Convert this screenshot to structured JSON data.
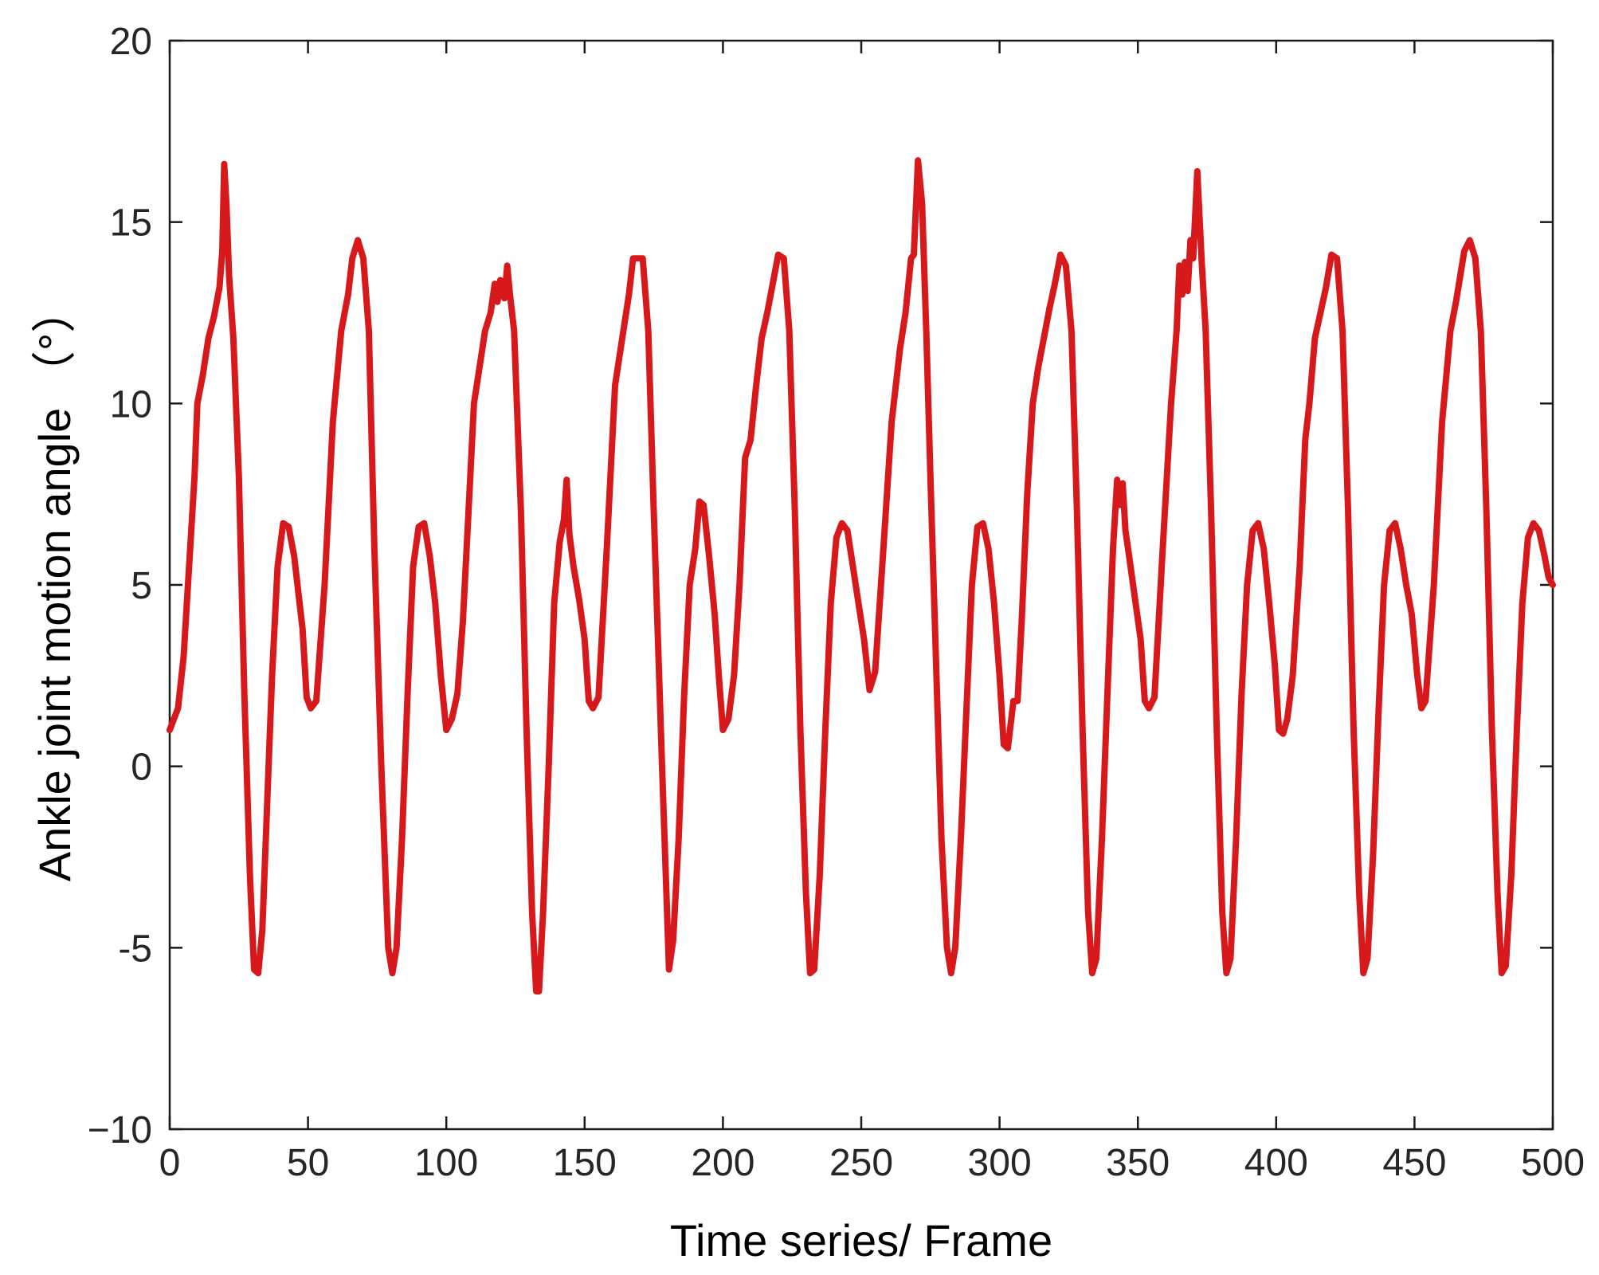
{
  "chart_data": {
    "type": "line",
    "title": "",
    "xlabel": "Time series/ Frame",
    "ylabel": "Ankle joint motion angle （°）",
    "xlim": [
      0,
      500
    ],
    "ylim": [
      -10,
      20
    ],
    "x_ticks": [
      0,
      50,
      100,
      150,
      200,
      250,
      300,
      350,
      400,
      450,
      500
    ],
    "y_ticks": [
      -10,
      -5,
      0,
      5,
      10,
      15,
      20
    ],
    "x_tick_labels": [
      "0",
      "50",
      "100",
      "150",
      "200",
      "250",
      "300",
      "350",
      "400",
      "450",
      "500"
    ],
    "y_tick_labels": [
      "−10",
      "-5",
      "0",
      "5",
      "10",
      "15",
      "20"
    ],
    "grid": false,
    "legend": "none",
    "series": [
      {
        "color": "#d7191c",
        "points": [
          [
            0,
            1.0
          ],
          [
            3,
            1.6
          ],
          [
            5,
            3.0
          ],
          [
            7,
            5.5
          ],
          [
            9,
            8.0
          ],
          [
            10,
            10.0
          ],
          [
            12,
            10.8
          ],
          [
            14,
            11.8
          ],
          [
            16,
            12.4
          ],
          [
            18,
            13.2
          ],
          [
            19,
            14.2
          ],
          [
            19.7,
            16.6
          ],
          [
            20.5,
            15.5
          ],
          [
            21.5,
            13.5
          ],
          [
            23,
            11.8
          ],
          [
            25,
            8.0
          ],
          [
            27,
            2.0
          ],
          [
            29,
            -3.0
          ],
          [
            30.5,
            -5.6
          ],
          [
            32,
            -5.7
          ],
          [
            33.5,
            -4.5
          ],
          [
            35,
            -1.5
          ],
          [
            37,
            2.5
          ],
          [
            39,
            5.5
          ],
          [
            41,
            6.7
          ],
          [
            43,
            6.6
          ],
          [
            45,
            5.8
          ],
          [
            46.5,
            4.8
          ],
          [
            48,
            3.8
          ],
          [
            49.5,
            1.9
          ],
          [
            51,
            1.6
          ],
          [
            53,
            1.8
          ],
          [
            56,
            5.0
          ],
          [
            59,
            9.5
          ],
          [
            62,
            12.0
          ],
          [
            64.5,
            13.0
          ],
          [
            66,
            14.0
          ],
          [
            68,
            14.5
          ],
          [
            70,
            14.0
          ],
          [
            72,
            12.0
          ],
          [
            74,
            6.0
          ],
          [
            76.5,
            0.0
          ],
          [
            79,
            -5.0
          ],
          [
            80.5,
            -5.7
          ],
          [
            82,
            -5.0
          ],
          [
            84,
            -2.0
          ],
          [
            86,
            2.0
          ],
          [
            88,
            5.5
          ],
          [
            90,
            6.6
          ],
          [
            92,
            6.7
          ],
          [
            94,
            5.8
          ],
          [
            96,
            4.5
          ],
          [
            98,
            2.5
          ],
          [
            100,
            1.0
          ],
          [
            102,
            1.3
          ],
          [
            104,
            2.0
          ],
          [
            106,
            4.0
          ],
          [
            108,
            7.0
          ],
          [
            110,
            10.0
          ],
          [
            112,
            11.0
          ],
          [
            114,
            12.0
          ],
          [
            116,
            12.5
          ],
          [
            117.5,
            13.3
          ],
          [
            118.5,
            12.8
          ],
          [
            119.5,
            13.4
          ],
          [
            121,
            12.9
          ],
          [
            122,
            13.8
          ],
          [
            123,
            13.0
          ],
          [
            124.5,
            12.0
          ],
          [
            127,
            7.0
          ],
          [
            129,
            1.0
          ],
          [
            131,
            -4.0
          ],
          [
            132.5,
            -6.2
          ],
          [
            133.5,
            -6.2
          ],
          [
            135,
            -4.0
          ],
          [
            137,
            0.0
          ],
          [
            139,
            4.5
          ],
          [
            141,
            6.2
          ],
          [
            142.5,
            6.8
          ],
          [
            143.5,
            7.9
          ],
          [
            144.5,
            6.4
          ],
          [
            146,
            5.5
          ],
          [
            148,
            4.6
          ],
          [
            150,
            3.5
          ],
          [
            151.5,
            1.8
          ],
          [
            153,
            1.6
          ],
          [
            155,
            1.9
          ],
          [
            158,
            6.0
          ],
          [
            161,
            10.5
          ],
          [
            164,
            12.0
          ],
          [
            166,
            13.0
          ],
          [
            167.5,
            14.0
          ],
          [
            171,
            14.0
          ],
          [
            173,
            12.0
          ],
          [
            175,
            7.0
          ],
          [
            178,
            0.0
          ],
          [
            180.5,
            -5.6
          ],
          [
            182,
            -4.8
          ],
          [
            184,
            -2.0
          ],
          [
            186,
            2.0
          ],
          [
            188,
            5.0
          ],
          [
            190,
            6.0
          ],
          [
            191.5,
            7.3
          ],
          [
            193,
            7.2
          ],
          [
            195,
            5.8
          ],
          [
            197,
            4.2
          ],
          [
            198.5,
            2.5
          ],
          [
            200,
            1.0
          ],
          [
            202,
            1.3
          ],
          [
            204,
            2.5
          ],
          [
            206,
            5.0
          ],
          [
            208,
            8.5
          ],
          [
            210,
            9.0
          ],
          [
            212,
            10.5
          ],
          [
            214,
            11.8
          ],
          [
            216,
            12.5
          ],
          [
            218,
            13.3
          ],
          [
            220,
            14.1
          ],
          [
            222,
            14.0
          ],
          [
            224,
            12.0
          ],
          [
            226,
            7.0
          ],
          [
            228,
            1.0
          ],
          [
            230,
            -3.5
          ],
          [
            231.5,
            -5.7
          ],
          [
            233,
            -5.6
          ],
          [
            235,
            -3.0
          ],
          [
            237,
            1.0
          ],
          [
            239,
            4.5
          ],
          [
            241,
            6.3
          ],
          [
            243,
            6.7
          ],
          [
            245,
            6.5
          ],
          [
            247,
            5.5
          ],
          [
            249,
            4.5
          ],
          [
            251,
            3.5
          ],
          [
            253,
            2.1
          ],
          [
            255,
            2.6
          ],
          [
            258,
            6.0
          ],
          [
            261,
            9.5
          ],
          [
            264,
            11.5
          ],
          [
            266,
            12.5
          ],
          [
            268,
            14.0
          ],
          [
            269,
            14.1
          ],
          [
            270.5,
            16.7
          ],
          [
            272,
            15.5
          ],
          [
            273.5,
            12.0
          ],
          [
            275,
            8.0
          ],
          [
            277,
            3.0
          ],
          [
            279,
            -2.0
          ],
          [
            281,
            -5.0
          ],
          [
            282.5,
            -5.7
          ],
          [
            284,
            -5.0
          ],
          [
            286,
            -2.0
          ],
          [
            288,
            1.5
          ],
          [
            290,
            5.0
          ],
          [
            292,
            6.6
          ],
          [
            294,
            6.7
          ],
          [
            296,
            6.0
          ],
          [
            298,
            4.5
          ],
          [
            300,
            2.5
          ],
          [
            301.5,
            0.6
          ],
          [
            303,
            0.5
          ],
          [
            305,
            1.8
          ],
          [
            306.5,
            1.8
          ],
          [
            308,
            4.0
          ],
          [
            310,
            7.5
          ],
          [
            312,
            10.0
          ],
          [
            314,
            11.0
          ],
          [
            316,
            11.8
          ],
          [
            318,
            12.6
          ],
          [
            320,
            13.3
          ],
          [
            322,
            14.1
          ],
          [
            324,
            13.8
          ],
          [
            326,
            12.0
          ],
          [
            328,
            7.0
          ],
          [
            330,
            1.0
          ],
          [
            332,
            -4.0
          ],
          [
            333.5,
            -5.7
          ],
          [
            335,
            -5.3
          ],
          [
            337,
            -2.0
          ],
          [
            339,
            2.0
          ],
          [
            341,
            6.0
          ],
          [
            342.5,
            7.9
          ],
          [
            343.5,
            7.2
          ],
          [
            344.5,
            7.8
          ],
          [
            345.5,
            6.5
          ],
          [
            347,
            5.7
          ],
          [
            349,
            4.6
          ],
          [
            351,
            3.5
          ],
          [
            352.5,
            1.8
          ],
          [
            354,
            1.6
          ],
          [
            356,
            1.9
          ],
          [
            359,
            6.0
          ],
          [
            362,
            10.0
          ],
          [
            364,
            12.0
          ],
          [
            365,
            13.8
          ],
          [
            366,
            13.0
          ],
          [
            367,
            13.9
          ],
          [
            368,
            13.1
          ],
          [
            369,
            14.5
          ],
          [
            370,
            14.0
          ],
          [
            371.5,
            16.4
          ],
          [
            373,
            14.0
          ],
          [
            374.5,
            12.0
          ],
          [
            376.5,
            7.0
          ],
          [
            378.5,
            1.0
          ],
          [
            380.5,
            -4.0
          ],
          [
            382,
            -5.7
          ],
          [
            383.5,
            -5.3
          ],
          [
            385.5,
            -2.0
          ],
          [
            387.5,
            2.0
          ],
          [
            389.5,
            5.0
          ],
          [
            391.5,
            6.5
          ],
          [
            393.5,
            6.7
          ],
          [
            395.5,
            6.0
          ],
          [
            397.5,
            4.5
          ],
          [
            399.5,
            2.8
          ],
          [
            401,
            1.0
          ],
          [
            402.5,
            0.9
          ],
          [
            404,
            1.3
          ],
          [
            406,
            2.5
          ],
          [
            408.5,
            5.5
          ],
          [
            410.5,
            9.0
          ],
          [
            412,
            10.0
          ],
          [
            414,
            11.8
          ],
          [
            416,
            12.5
          ],
          [
            418,
            13.2
          ],
          [
            420,
            14.1
          ],
          [
            422,
            14.0
          ],
          [
            424,
            12.0
          ],
          [
            426,
            7.0
          ],
          [
            428,
            1.0
          ],
          [
            430,
            -3.5
          ],
          [
            431.5,
            -5.7
          ],
          [
            433,
            -5.3
          ],
          [
            435,
            -2.5
          ],
          [
            437,
            1.5
          ],
          [
            439,
            5.0
          ],
          [
            441,
            6.5
          ],
          [
            443,
            6.7
          ],
          [
            445,
            6.0
          ],
          [
            447,
            5.0
          ],
          [
            449,
            4.2
          ],
          [
            451,
            2.5
          ],
          [
            452.5,
            1.6
          ],
          [
            454,
            1.8
          ],
          [
            457,
            5.0
          ],
          [
            460,
            9.5
          ],
          [
            463,
            12.0
          ],
          [
            465,
            12.8
          ],
          [
            466.5,
            13.5
          ],
          [
            468,
            14.2
          ],
          [
            470,
            14.5
          ],
          [
            472,
            14.0
          ],
          [
            474,
            12.0
          ],
          [
            476,
            7.0
          ],
          [
            478,
            1.0
          ],
          [
            480,
            -3.5
          ],
          [
            481.5,
            -5.7
          ],
          [
            483,
            -5.5
          ],
          [
            485,
            -3.0
          ],
          [
            487,
            1.0
          ],
          [
            489,
            4.5
          ],
          [
            491,
            6.3
          ],
          [
            493,
            6.7
          ],
          [
            495,
            6.5
          ],
          [
            497,
            5.8
          ],
          [
            498.5,
            5.2
          ],
          [
            500,
            5.0
          ]
        ]
      }
    ]
  }
}
